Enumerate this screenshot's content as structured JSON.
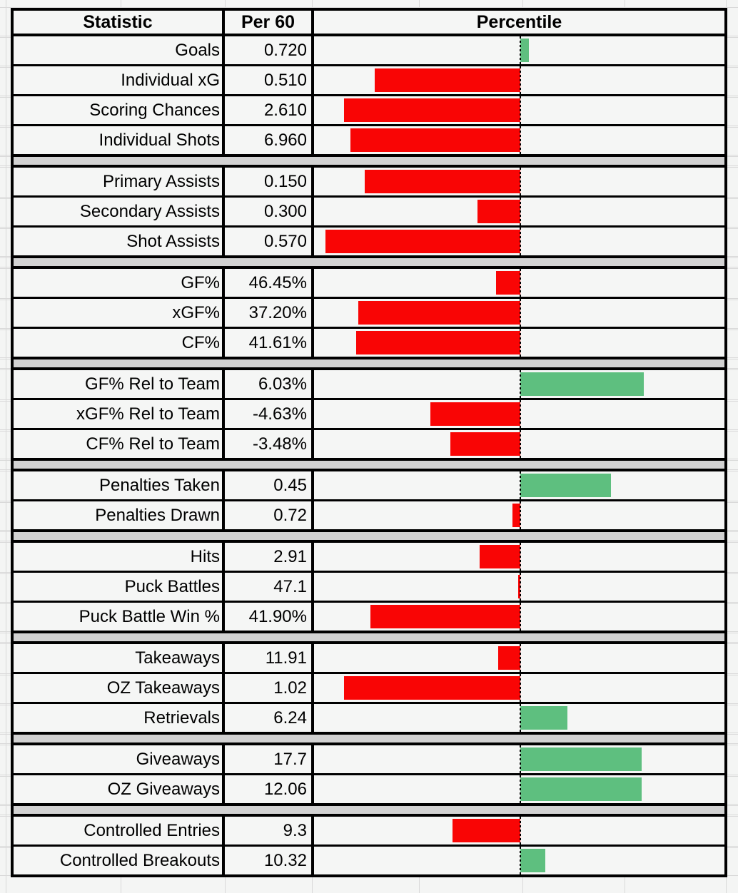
{
  "header": {
    "statistic": "Statistic",
    "per60": "Per 60",
    "percentile": "Percentile"
  },
  "chart_data": {
    "type": "bar",
    "title": "Player statistics per-60 with league percentile bars",
    "orientation": "horizontal",
    "axis": {
      "min": 0,
      "max": 100,
      "baseline": 50,
      "baseline_style": "dashed"
    },
    "legend": "none",
    "colors": {
      "below_baseline": "#f90505",
      "above_baseline": "#5ebf7f",
      "separator": "#d2d2d2",
      "cell_background": "#f5f6f5",
      "border": "#000000"
    },
    "columns": [
      "Statistic",
      "Per 60",
      "Percentile"
    ],
    "sections": [
      {
        "rows": [
          {
            "label": "Goals",
            "per60": "0.720",
            "percentile": 52
          },
          {
            "label": "Individual xG",
            "per60": "0.510",
            "percentile": 14.5
          },
          {
            "label": "Scoring Chances",
            "per60": "2.610",
            "percentile": 7
          },
          {
            "label": "Individual Shots",
            "per60": "6.960",
            "percentile": 8.5
          }
        ]
      },
      {
        "rows": [
          {
            "label": "Primary Assists",
            "per60": "0.150",
            "percentile": 12
          },
          {
            "label": "Secondary Assists",
            "per60": "0.300",
            "percentile": 39.5
          },
          {
            "label": "Shot Assists",
            "per60": "0.570",
            "percentile": 2.5
          }
        ]
      },
      {
        "rows": [
          {
            "label": "GF%",
            "per60": "46.45%",
            "percentile": 44
          },
          {
            "label": "xGF%",
            "per60": "37.20%",
            "percentile": 10.5
          },
          {
            "label": "CF%",
            "per60": "41.61%",
            "percentile": 10
          }
        ]
      },
      {
        "rows": [
          {
            "label": "GF% Rel to Team",
            "per60": "6.03%",
            "percentile": 80
          },
          {
            "label": "xGF% Rel to Team",
            "per60": "-4.63%",
            "percentile": 28
          },
          {
            "label": "CF% Rel to Team",
            "per60": "-3.48%",
            "percentile": 33
          }
        ]
      },
      {
        "rows": [
          {
            "label": "Penalties Taken",
            "per60": "0.45",
            "percentile": 72
          },
          {
            "label": "Penalties Drawn",
            "per60": "0.72",
            "percentile": 48
          }
        ]
      },
      {
        "rows": [
          {
            "label": "Hits",
            "per60": "2.91",
            "percentile": 40
          },
          {
            "label": "Puck Battles",
            "per60": "47.1",
            "percentile": 49.5
          },
          {
            "label": "Puck Battle Win %",
            "per60": "41.90%",
            "percentile": 13.5
          }
        ]
      },
      {
        "rows": [
          {
            "label": "Takeaways",
            "per60": "11.91",
            "percentile": 44.5
          },
          {
            "label": "OZ Takeaways",
            "per60": "1.02",
            "percentile": 7
          },
          {
            "label": "Retrievals",
            "per60": "6.24",
            "percentile": 61.5
          }
        ]
      },
      {
        "rows": [
          {
            "label": "Giveaways",
            "per60": "17.7",
            "percentile": 79.5
          },
          {
            "label": "OZ Giveaways",
            "per60": "12.06",
            "percentile": 79.5
          }
        ]
      },
      {
        "rows": [
          {
            "label": "Controlled Entries",
            "per60": "9.3",
            "percentile": 33.5
          },
          {
            "label": "Controlled Breakouts",
            "per60": "10.32",
            "percentile": 56
          }
        ]
      }
    ]
  }
}
